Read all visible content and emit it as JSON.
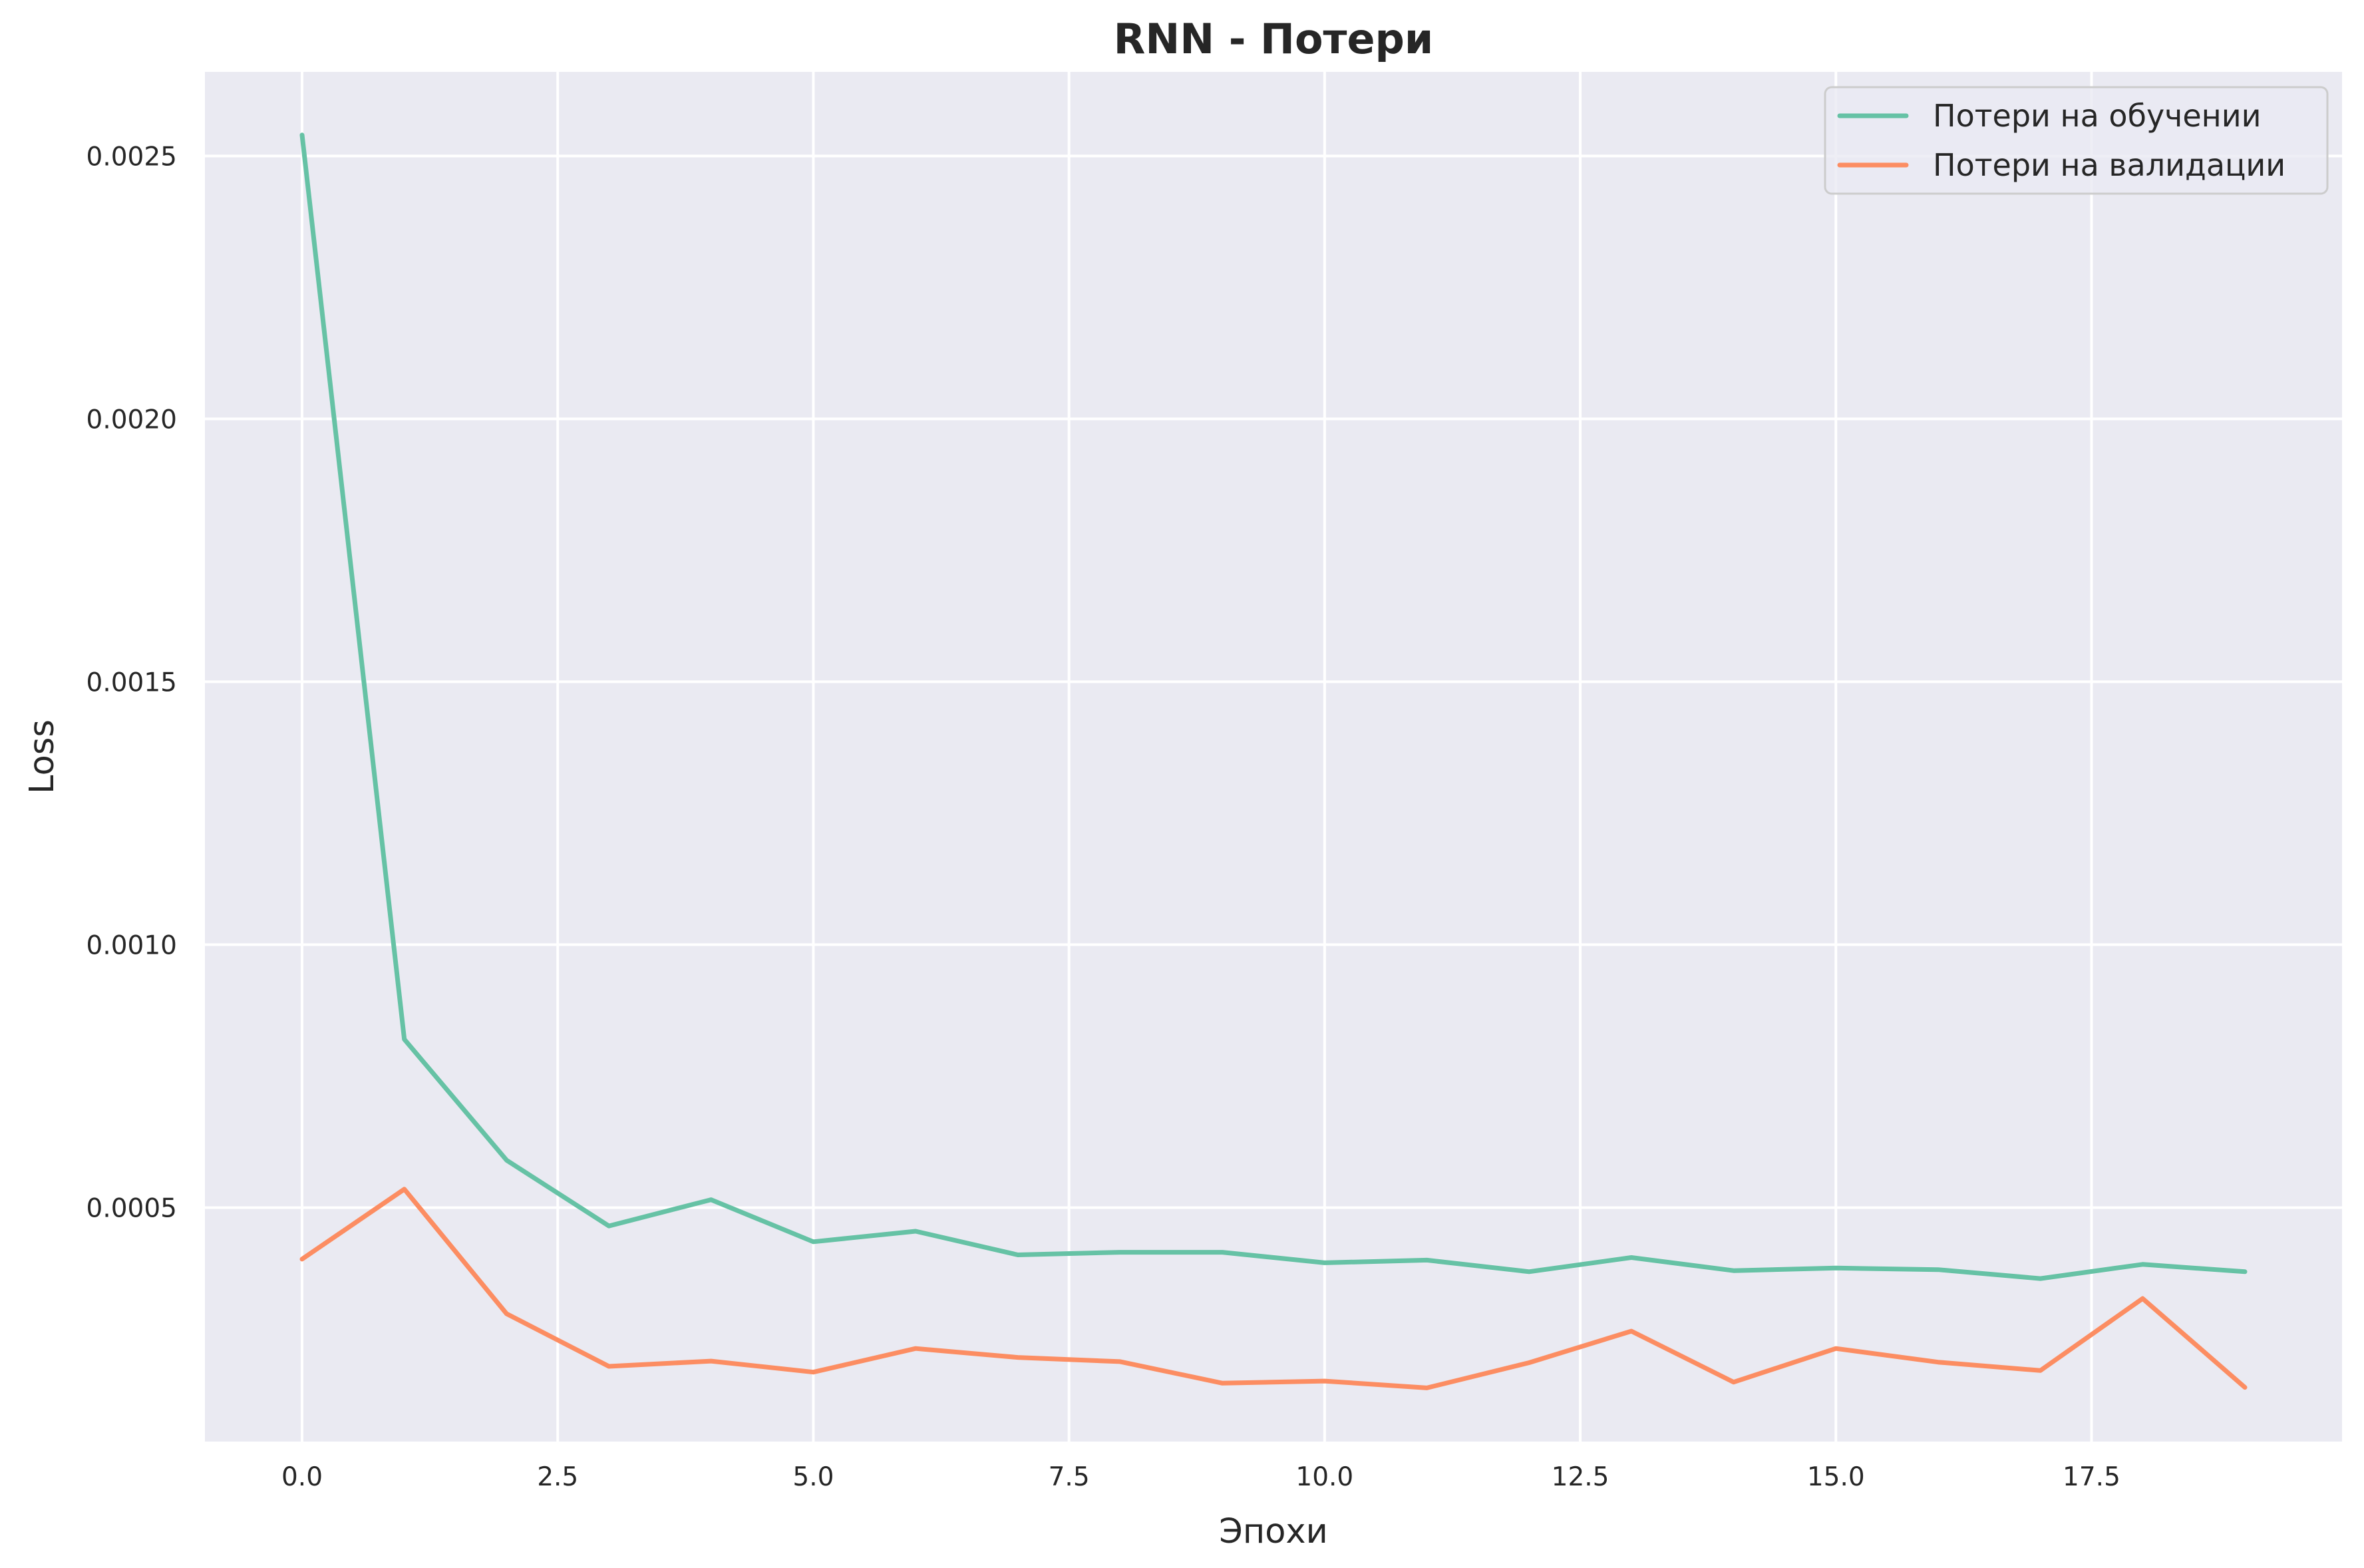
{
  "chart_data": {
    "type": "line",
    "title": "RNN - Потери",
    "xlabel": "Эпохи",
    "ylabel": "Loss",
    "x": [
      0,
      1,
      2,
      3,
      4,
      5,
      6,
      7,
      8,
      9,
      10,
      11,
      12,
      13,
      14,
      15,
      16,
      17,
      18,
      19
    ],
    "series": [
      {
        "name": "Потери на обучении",
        "color": "#66c2a5",
        "values": [
          0.00254,
          0.00082,
          0.00059,
          0.000465,
          0.000515,
          0.000435,
          0.000455,
          0.00041,
          0.000415,
          0.000415,
          0.000395,
          0.0004,
          0.000378,
          0.000405,
          0.00038,
          0.000385,
          0.000382,
          0.000365,
          0.000392,
          0.000378
        ]
      },
      {
        "name": "Потери на валидации",
        "color": "#fc8d62",
        "values": [
          0.000402,
          0.000535,
          0.000298,
          0.000198,
          0.000208,
          0.000187,
          0.000232,
          0.000215,
          0.000207,
          0.000166,
          0.00017,
          0.000157,
          0.000205,
          0.000265,
          0.000168,
          0.000232,
          0.000206,
          0.00019,
          0.000327,
          0.000158
        ]
      }
    ],
    "xlim": [
      -0.95,
      19.95
    ],
    "ylim": [
      5.5e-05,
      0.00266
    ],
    "xticks": [
      0.0,
      2.5,
      5.0,
      7.5,
      10.0,
      12.5,
      15.0,
      17.5
    ],
    "xtick_labels": [
      "0.0",
      "2.5",
      "5.0",
      "7.5",
      "10.0",
      "12.5",
      "15.0",
      "17.5"
    ],
    "yticks": [
      0.0005,
      0.001,
      0.0015,
      0.002,
      0.0025
    ],
    "ytick_labels": [
      "0.0005",
      "0.0010",
      "0.0015",
      "0.0020",
      "0.0025"
    ],
    "grid": true,
    "legend_position": "top-right",
    "background_color": "#eaeaf2"
  }
}
